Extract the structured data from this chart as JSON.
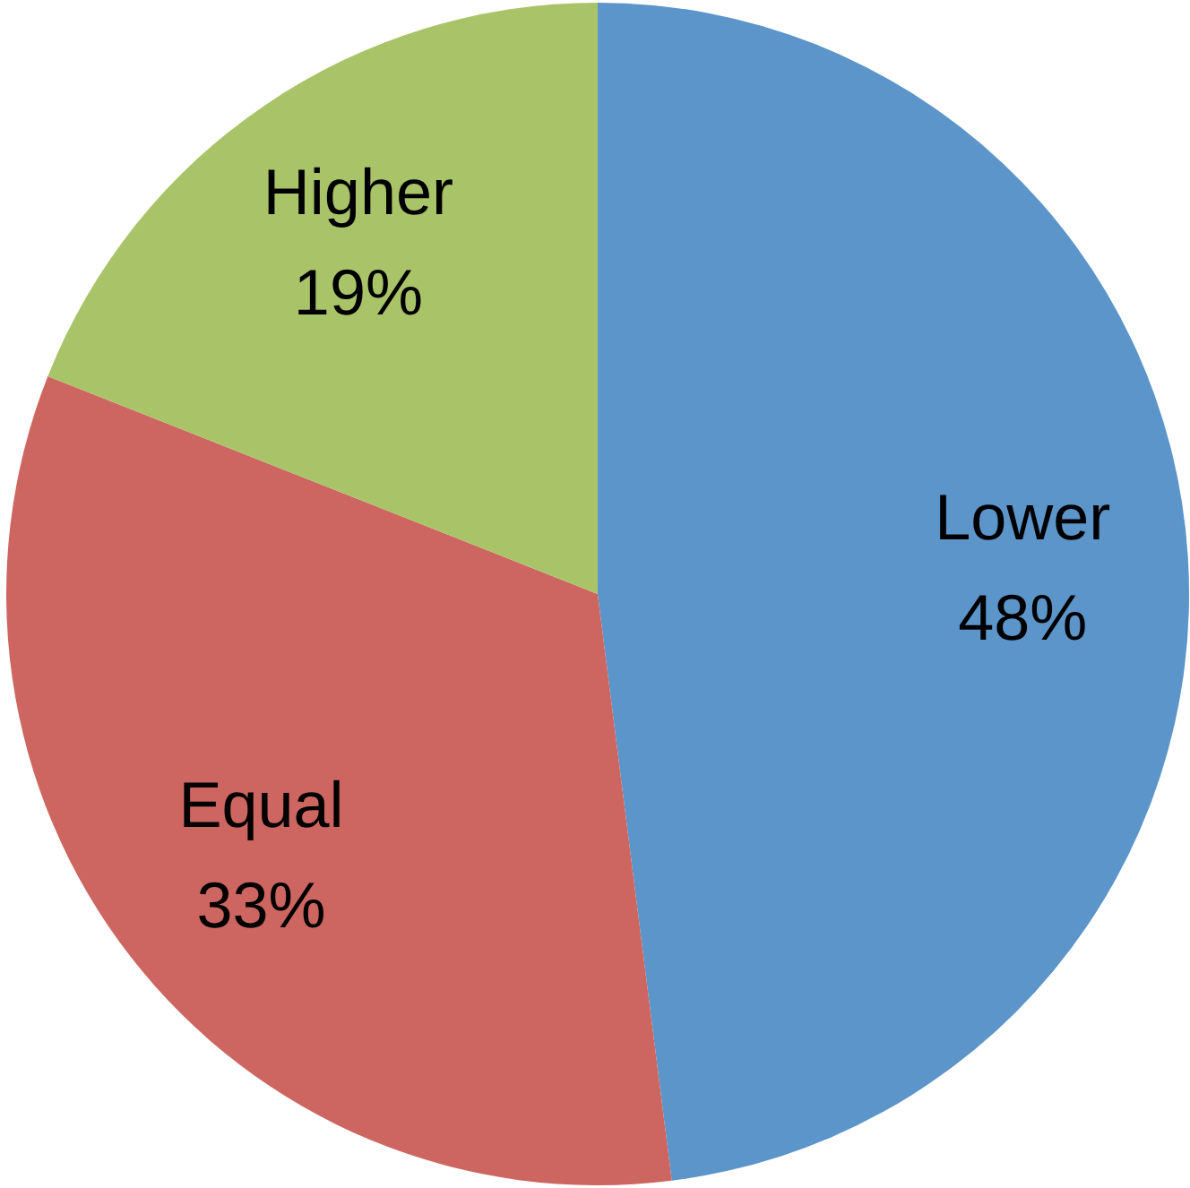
{
  "chart_data": {
    "type": "pie",
    "categories": [
      "Lower",
      "Equal",
      "Higher"
    ],
    "values": [
      48,
      33,
      19
    ],
    "colors": [
      "#5b95c9",
      "#cd6660",
      "#a9c468"
    ],
    "value_labels": [
      "48%",
      "33%",
      "19%"
    ]
  }
}
